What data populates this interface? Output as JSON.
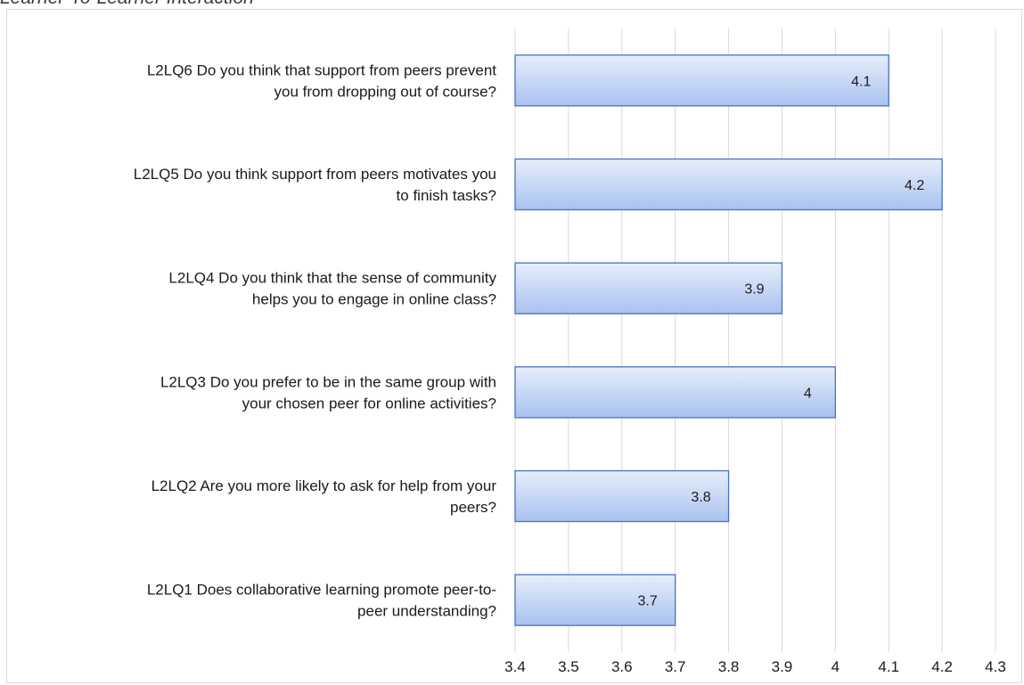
{
  "chart_data": {
    "type": "bar",
    "orientation": "horizontal",
    "title": "Learner-To-Learner Interaction",
    "categories": [
      [
        "L2LQ6 Do you think that support from peers prevent",
        "you from dropping out of course?"
      ],
      [
        "L2LQ5 Do you think support from peers motivates you",
        "to finish tasks?"
      ],
      [
        "L2LQ4 Do you think that the sense of community",
        "helps you to engage in online class?"
      ],
      [
        "L2LQ3 Do you prefer to be in the same group with",
        "your chosen peer for online activities?"
      ],
      [
        "L2LQ2 Are you more likely to ask for help from your",
        "peers?"
      ],
      [
        "L2LQ1 Does collaborative learning promote peer-to-",
        "peer understanding?"
      ]
    ],
    "values": [
      4.1,
      4.2,
      3.9,
      4,
      3.8,
      3.7
    ],
    "data_labels": [
      "4.1",
      "4.2",
      "3.9",
      "4",
      "3.8",
      "3.7"
    ],
    "xlim": [
      3.4,
      4.3
    ],
    "xticks": [
      "3.4",
      "3.5",
      "3.6",
      "3.7",
      "3.8",
      "3.9",
      "4",
      "4.1",
      "4.2",
      "4.3"
    ],
    "grid": "vertical",
    "legend": "none",
    "colors": {
      "bar_fill_light": "#e6eefb",
      "bar_fill_dark": "#a9c2f0",
      "bar_stroke": "#4472c4",
      "grid": "#d9d9d9"
    }
  }
}
